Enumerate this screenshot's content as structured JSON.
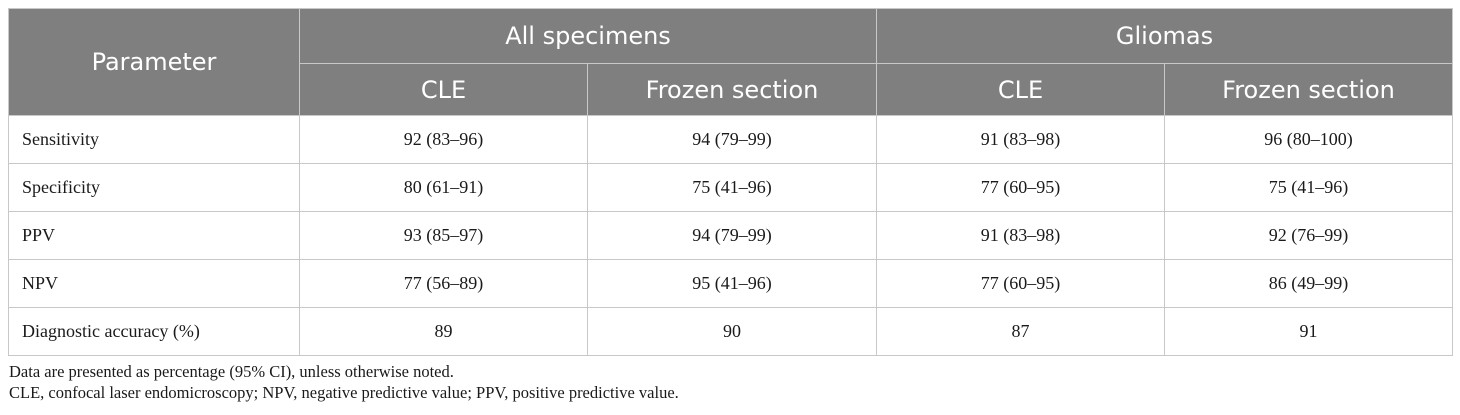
{
  "header": {
    "parameter": "Parameter",
    "groups": [
      "All specimens",
      "Gliomas"
    ],
    "subcolumns": [
      "CLE",
      "Frozen section",
      "CLE",
      "Frozen section"
    ]
  },
  "rows": [
    {
      "label": "Sensitivity",
      "values": [
        "92 (83–96)",
        "94 (79–99)",
        "91 (83–98)",
        "96 (80–100)"
      ]
    },
    {
      "label": "Specificity",
      "values": [
        "80 (61–91)",
        "75 (41–96)",
        "77 (60–95)",
        "75 (41–96)"
      ]
    },
    {
      "label": "PPV",
      "values": [
        "93 (85–97)",
        "94 (79–99)",
        "91 (83–98)",
        "92 (76–99)"
      ]
    },
    {
      "label": "NPV",
      "values": [
        "77 (56–89)",
        "95 (41–96)",
        "77 (60–95)",
        "86 (49–99)"
      ]
    },
    {
      "label": "Diagnostic accuracy (%)",
      "values": [
        "89",
        "90",
        "87",
        "91"
      ]
    }
  ],
  "footnotes": [
    "Data are presented as percentage (95% CI), unless otherwise noted.",
    "CLE, confocal laser endomicroscopy; NPV, negative predictive value; PPV, positive predictive value."
  ],
  "colors": {
    "header_bg": "#7f7f7f",
    "header_text": "#ffffff",
    "grid": "#c8c8c8"
  }
}
